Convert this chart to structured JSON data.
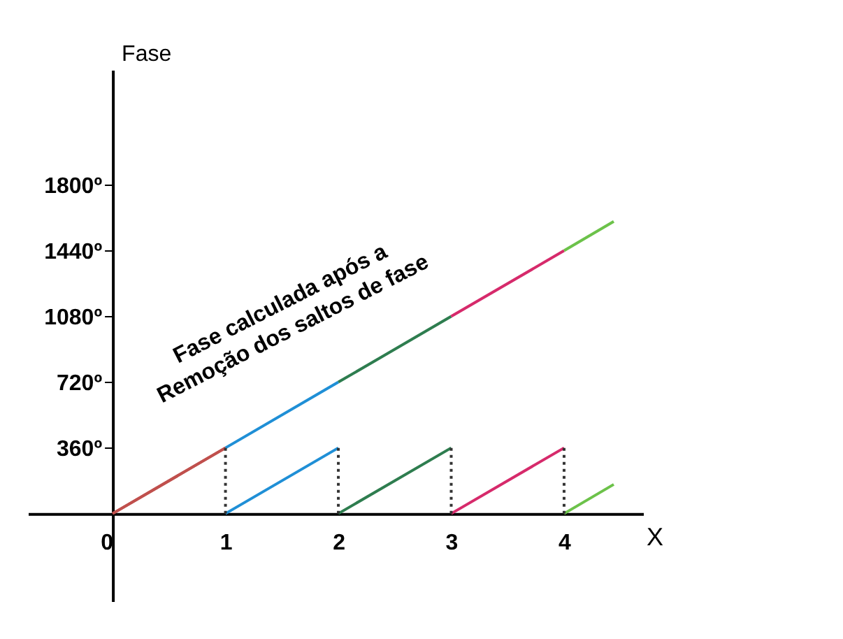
{
  "chart_data": {
    "type": "line",
    "xlabel": "X",
    "ylabel": "Fase",
    "xlim": [
      -0.75,
      4.7
    ],
    "ylim": [
      -480,
      2430
    ],
    "xticks": [
      0,
      1,
      2,
      3,
      4
    ],
    "yticks": [
      {
        "value": 360,
        "label": "360º"
      },
      {
        "value": 720,
        "label": "720º"
      },
      {
        "value": 1080,
        "label": "1080º"
      },
      {
        "value": 1440,
        "label": "1440º"
      },
      {
        "value": 1800,
        "label": "1800º"
      }
    ],
    "grid": false,
    "marker": "none",
    "series": [
      {
        "color": "#c0504d",
        "x": [
          0,
          1
        ],
        "values": [
          0,
          360
        ]
      },
      {
        "color": "#1f8fd6",
        "x": [
          1,
          2
        ],
        "values": [
          360,
          720
        ]
      },
      {
        "color": "#2e7d4f",
        "x": [
          2,
          3
        ],
        "values": [
          720,
          1080
        ]
      },
      {
        "color": "#d62a6b",
        "x": [
          3,
          4
        ],
        "values": [
          1080,
          1440
        ]
      },
      {
        "color": "#6cc24a",
        "x": [
          4,
          4.44
        ],
        "values": [
          1440,
          1600
        ]
      },
      {
        "color": "#c0504d",
        "x": [
          0,
          1
        ],
        "values": [
          0,
          360
        ]
      },
      {
        "color": "#1f8fd6",
        "x": [
          1,
          2
        ],
        "values": [
          0,
          360
        ]
      },
      {
        "color": "#2e7d4f",
        "x": [
          2,
          3
        ],
        "values": [
          0,
          360
        ]
      },
      {
        "color": "#d62a6b",
        "x": [
          3,
          4
        ],
        "values": [
          0,
          360
        ]
      },
      {
        "color": "#6cc24a",
        "x": [
          4,
          4.44
        ],
        "values": [
          0,
          160
        ]
      },
      {
        "color": "#333333",
        "line_style": "dotted",
        "x": [
          1,
          1,
          null,
          2,
          2,
          null,
          3,
          3,
          null,
          4,
          4
        ],
        "values": [
          0,
          360,
          null,
          0,
          360,
          null,
          0,
          360,
          null,
          0,
          360
        ]
      }
    ],
    "annotations": [
      "Fase calculada após a\nRemoção dos saltos de fase"
    ]
  }
}
